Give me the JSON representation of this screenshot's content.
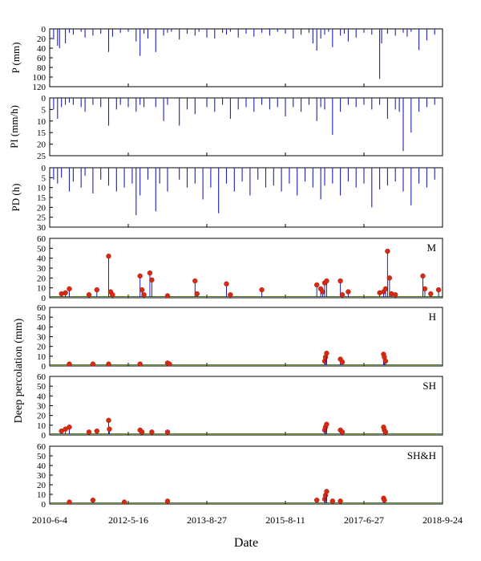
{
  "colors": {
    "bar": "#1f1fb4",
    "line": "#1f1fb4",
    "point_high": "#d62a12",
    "point_low": "#3f7a12",
    "axis": "#000000"
  },
  "chart_data": [
    {
      "type": "bar",
      "id": "p",
      "ylabel": "P (mm)",
      "ylim": [
        0,
        120
      ],
      "inverted": true,
      "yticks": [
        0,
        20,
        40,
        60,
        80,
        100,
        120
      ],
      "series": [
        {
          "x": [
            0.01,
            0.02,
            0.025,
            0.04,
            0.05,
            0.06,
            0.08,
            0.09,
            0.11,
            0.13,
            0.15,
            0.16,
            0.18,
            0.2,
            0.22,
            0.23,
            0.24,
            0.25,
            0.27,
            0.29,
            0.3,
            0.31,
            0.33,
            0.35,
            0.37,
            0.38,
            0.4,
            0.42,
            0.44,
            0.45,
            0.46,
            0.48,
            0.5,
            0.52,
            0.54,
            0.56,
            0.58,
            0.6,
            0.62,
            0.64,
            0.66,
            0.67,
            0.68,
            0.69,
            0.7,
            0.71,
            0.72,
            0.74,
            0.75,
            0.76,
            0.78,
            0.8,
            0.82,
            0.84,
            0.845,
            0.86,
            0.88,
            0.9,
            0.91,
            0.92,
            0.94,
            0.96,
            0.98
          ],
          "values": [
            22,
            35,
            40,
            30,
            8,
            12,
            6,
            18,
            14,
            10,
            48,
            16,
            8,
            6,
            26,
            56,
            10,
            20,
            48,
            14,
            8,
            6,
            22,
            10,
            14,
            6,
            18,
            20,
            8,
            12,
            6,
            18,
            10,
            16,
            8,
            14,
            6,
            10,
            20,
            12,
            8,
            30,
            45,
            20,
            12,
            6,
            38,
            14,
            10,
            26,
            18,
            8,
            12,
            104,
            30,
            10,
            14,
            8,
            16,
            6,
            44,
            24,
            12
          ]
        }
      ]
    },
    {
      "type": "bar",
      "id": "pi",
      "ylabel": "PI (mm/h)",
      "ylim": [
        0,
        25
      ],
      "inverted": true,
      "yticks": [
        0,
        5,
        10,
        15,
        20,
        25
      ],
      "series": [
        {
          "x": [
            0.01,
            0.02,
            0.03,
            0.04,
            0.05,
            0.06,
            0.08,
            0.09,
            0.11,
            0.13,
            0.15,
            0.17,
            0.18,
            0.2,
            0.22,
            0.23,
            0.24,
            0.27,
            0.29,
            0.3,
            0.33,
            0.35,
            0.37,
            0.4,
            0.42,
            0.44,
            0.46,
            0.48,
            0.5,
            0.52,
            0.54,
            0.56,
            0.58,
            0.6,
            0.62,
            0.64,
            0.66,
            0.68,
            0.69,
            0.7,
            0.72,
            0.74,
            0.76,
            0.78,
            0.8,
            0.82,
            0.84,
            0.86,
            0.88,
            0.89,
            0.9,
            0.92,
            0.94,
            0.96,
            0.98
          ],
          "values": [
            5,
            9,
            4,
            3,
            2,
            3,
            4,
            6,
            3,
            4,
            12,
            5,
            3,
            4,
            6,
            3,
            4,
            4,
            10,
            3,
            12,
            5,
            7,
            4,
            6,
            3,
            9,
            5,
            4,
            6,
            3,
            5,
            4,
            8,
            4,
            6,
            3,
            10,
            4,
            5,
            16,
            6,
            3,
            4,
            3,
            5,
            3,
            9,
            5,
            6,
            23,
            15,
            6,
            4,
            3
          ]
        }
      ]
    },
    {
      "type": "bar",
      "id": "pd",
      "ylabel": "PD (h)",
      "ylim": [
        0,
        30
      ],
      "inverted": true,
      "yticks": [
        0,
        5,
        10,
        15,
        20,
        25,
        30
      ],
      "series": [
        {
          "x": [
            0.01,
            0.02,
            0.03,
            0.05,
            0.06,
            0.08,
            0.09,
            0.11,
            0.13,
            0.15,
            0.17,
            0.19,
            0.21,
            0.22,
            0.23,
            0.25,
            0.27,
            0.28,
            0.3,
            0.33,
            0.35,
            0.37,
            0.39,
            0.41,
            0.43,
            0.45,
            0.47,
            0.49,
            0.51,
            0.53,
            0.55,
            0.57,
            0.59,
            0.61,
            0.63,
            0.65,
            0.67,
            0.69,
            0.7,
            0.72,
            0.74,
            0.76,
            0.78,
            0.8,
            0.82,
            0.84,
            0.86,
            0.88,
            0.9,
            0.92,
            0.94,
            0.96,
            0.98
          ],
          "values": [
            6,
            8,
            5,
            12,
            7,
            10,
            4,
            13,
            6,
            9,
            12,
            10,
            8,
            24,
            14,
            6,
            22,
            8,
            12,
            6,
            10,
            8,
            16,
            10,
            23,
            8,
            12,
            7,
            14,
            6,
            10,
            9,
            12,
            8,
            14,
            7,
            10,
            16,
            9,
            8,
            14,
            7,
            10,
            8,
            20,
            11,
            9,
            7,
            12,
            19,
            8,
            10,
            6
          ]
        }
      ]
    },
    {
      "type": "scatter",
      "id": "m",
      "label": "M",
      "ylim": [
        0,
        60
      ],
      "yticks": [
        0,
        10,
        20,
        30,
        40,
        50,
        60
      ],
      "series": [
        {
          "x": [
            0.03,
            0.04,
            0.05,
            0.1,
            0.12,
            0.15,
            0.155,
            0.16,
            0.23,
            0.235,
            0.24,
            0.255,
            0.26,
            0.3,
            0.37,
            0.375,
            0.45,
            0.46,
            0.54,
            0.68,
            0.69,
            0.695,
            0.7,
            0.705,
            0.74,
            0.745,
            0.76,
            0.84,
            0.85,
            0.855,
            0.86,
            0.865,
            0.87,
            0.88,
            0.95,
            0.955,
            0.97,
            0.99
          ],
          "values": [
            4,
            5,
            9,
            3,
            8,
            42,
            6,
            3,
            22,
            8,
            3,
            25,
            18,
            2,
            17,
            4,
            14,
            3,
            8,
            13,
            9,
            6,
            15,
            17,
            17,
            3,
            6,
            5,
            6,
            9,
            47,
            20,
            4,
            3,
            22,
            9,
            4,
            8
          ]
        }
      ]
    },
    {
      "type": "scatter",
      "id": "h",
      "label": "H",
      "ylim": [
        0,
        60
      ],
      "yticks": [
        0,
        10,
        20,
        30,
        40,
        50,
        60
      ],
      "series": [
        {
          "x": [
            0.05,
            0.11,
            0.15,
            0.23,
            0.3,
            0.305,
            0.7,
            0.702,
            0.705,
            0.74,
            0.745,
            0.85,
            0.852,
            0.855
          ],
          "values": [
            2,
            2,
            2,
            2,
            3,
            2,
            5,
            9,
            13,
            7,
            4,
            12,
            9,
            5
          ]
        }
      ]
    },
    {
      "type": "scatter",
      "id": "sh",
      "label": "SH",
      "ylim": [
        0,
        60
      ],
      "yticks": [
        0,
        10,
        20,
        30,
        40,
        50,
        60
      ],
      "series": [
        {
          "x": [
            0.03,
            0.04,
            0.05,
            0.1,
            0.12,
            0.15,
            0.152,
            0.23,
            0.235,
            0.26,
            0.3,
            0.7,
            0.702,
            0.705,
            0.74,
            0.745,
            0.85,
            0.852,
            0.855
          ],
          "values": [
            4,
            6,
            8,
            3,
            4,
            15,
            6,
            5,
            3,
            3,
            3,
            5,
            8,
            11,
            5,
            3,
            8,
            5,
            3
          ]
        }
      ]
    },
    {
      "type": "scatter",
      "id": "shh",
      "label": "SH&H",
      "ylim": [
        0,
        60
      ],
      "yticks": [
        0,
        10,
        20,
        30,
        40,
        50,
        60
      ],
      "xlabel": "Date",
      "xticks": [
        "2010-6-4",
        "2012-5-16",
        "2013-8-27",
        "2015-8-11",
        "2017-6-27",
        "2018-9-24"
      ],
      "series": [
        {
          "x": [
            0.05,
            0.11,
            0.19,
            0.3,
            0.68,
            0.7,
            0.702,
            0.705,
            0.72,
            0.74,
            0.85,
            0.852
          ],
          "values": [
            2,
            4,
            2,
            3,
            4,
            5,
            9,
            13,
            3,
            3,
            6,
            4
          ]
        }
      ]
    }
  ],
  "shared_ylabel": "Deep percolation (mm)"
}
